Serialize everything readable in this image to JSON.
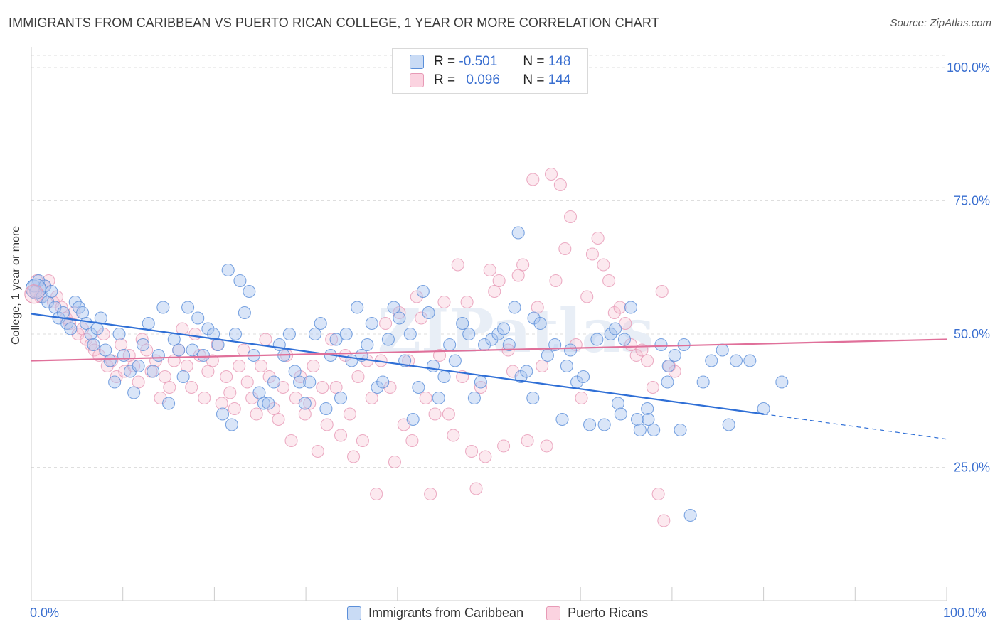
{
  "header": {
    "title": "IMMIGRANTS FROM CARIBBEAN VS PUERTO RICAN COLLEGE, 1 YEAR OR MORE CORRELATION CHART",
    "source": "Source: ZipAtlas.com"
  },
  "legend": {
    "rows": [
      {
        "r_label": "R =",
        "r_value": "-0.501",
        "n_label": "N =",
        "n_value": "148"
      },
      {
        "r_label": "R =",
        "r_value": "0.096",
        "n_label": "N =",
        "n_value": "144"
      }
    ]
  },
  "watermark": "ZIPatlas",
  "colors": {
    "blue_fill": "#aac6ef",
    "blue_stroke": "#5b8fd9",
    "blue_line": "#2f6fd6",
    "pink_fill": "#f7bfd2",
    "pink_stroke": "#e79ab6",
    "pink_line": "#e0709a",
    "tick_text": "#3a6fd0",
    "grid": "#dedede"
  },
  "chart_data": {
    "type": "scatter",
    "title": "IMMIGRANTS FROM CARIBBEAN VS PUERTO RICAN COLLEGE, 1 YEAR OR MORE CORRELATION CHART",
    "xlabel": "",
    "ylabel": "College, 1 year or more",
    "x_tick_labels": [
      "0.0%",
      "100.0%"
    ],
    "y_tick_labels": [
      "100.0%",
      "75.0%",
      "50.0%",
      "25.0%"
    ],
    "xlim": [
      0,
      100
    ],
    "ylim": [
      0,
      102
    ],
    "grid": true,
    "series": [
      {
        "name": "Immigrants from Caribbean",
        "color": "#5b8fd9",
        "trend": {
          "x0": 0,
          "y0": 53.8,
          "x1": 80,
          "y1": 35.0,
          "dash_to_x": 100,
          "dash_to_y": 30.3
        },
        "points": [
          [
            0.3,
            59
          ],
          [
            0.5,
            58
          ],
          [
            0.8,
            60
          ],
          [
            1.2,
            57
          ],
          [
            1.5,
            59
          ],
          [
            1.8,
            56
          ],
          [
            2.2,
            58
          ],
          [
            2.6,
            55
          ],
          [
            3.0,
            53
          ],
          [
            3.5,
            54
          ],
          [
            3.9,
            52
          ],
          [
            4.3,
            51
          ],
          [
            4.8,
            56
          ],
          [
            5.2,
            55
          ],
          [
            5.6,
            54
          ],
          [
            6.0,
            52
          ],
          [
            6.5,
            50
          ],
          [
            6.8,
            48
          ],
          [
            7.2,
            51
          ],
          [
            7.6,
            53
          ],
          [
            8.1,
            47
          ],
          [
            8.6,
            45
          ],
          [
            9.1,
            41
          ],
          [
            9.6,
            50
          ],
          [
            10.1,
            46
          ],
          [
            10.8,
            43
          ],
          [
            11.2,
            39
          ],
          [
            11.7,
            44
          ],
          [
            12.2,
            48
          ],
          [
            12.8,
            52
          ],
          [
            13.3,
            43
          ],
          [
            13.9,
            46
          ],
          [
            14.4,
            55
          ],
          [
            15.0,
            37
          ],
          [
            15.6,
            49
          ],
          [
            16.1,
            47
          ],
          [
            16.6,
            42
          ],
          [
            17.1,
            55
          ],
          [
            17.6,
            47
          ],
          [
            18.2,
            53
          ],
          [
            18.8,
            46
          ],
          [
            19.3,
            51
          ],
          [
            19.9,
            50
          ],
          [
            20.4,
            48
          ],
          [
            20.9,
            35
          ],
          [
            21.5,
            62
          ],
          [
            21.9,
            33
          ],
          [
            22.3,
            50
          ],
          [
            22.8,
            60
          ],
          [
            23.3,
            54
          ],
          [
            23.8,
            58
          ],
          [
            24.3,
            46
          ],
          [
            24.9,
            39
          ],
          [
            25.4,
            37
          ],
          [
            25.9,
            37
          ],
          [
            26.5,
            41
          ],
          [
            27.1,
            48
          ],
          [
            27.6,
            46
          ],
          [
            28.2,
            50
          ],
          [
            28.8,
            43
          ],
          [
            29.3,
            41
          ],
          [
            29.9,
            37
          ],
          [
            30.4,
            41
          ],
          [
            31.0,
            50
          ],
          [
            31.6,
            52
          ],
          [
            32.2,
            36
          ],
          [
            32.7,
            46
          ],
          [
            33.3,
            49
          ],
          [
            33.8,
            38
          ],
          [
            34.4,
            50
          ],
          [
            35.0,
            45
          ],
          [
            35.6,
            55
          ],
          [
            36.1,
            46
          ],
          [
            36.7,
            48
          ],
          [
            37.2,
            52
          ],
          [
            37.8,
            40
          ],
          [
            38.4,
            41
          ],
          [
            39.0,
            49
          ],
          [
            39.6,
            55
          ],
          [
            40.2,
            53
          ],
          [
            40.8,
            45
          ],
          [
            41.4,
            50
          ],
          [
            41.7,
            34
          ],
          [
            42.3,
            40
          ],
          [
            42.8,
            58
          ],
          [
            43.4,
            54
          ],
          [
            43.9,
            44
          ],
          [
            44.5,
            38
          ],
          [
            45.1,
            42
          ],
          [
            45.7,
            48
          ],
          [
            46.3,
            45
          ],
          [
            47.1,
            52
          ],
          [
            47.8,
            50
          ],
          [
            48.4,
            38
          ],
          [
            49.1,
            41
          ],
          [
            49.5,
            48
          ],
          [
            50.3,
            49
          ],
          [
            51.0,
            50
          ],
          [
            51.6,
            51
          ],
          [
            52.2,
            48
          ],
          [
            52.8,
            55
          ],
          [
            53.5,
            42
          ],
          [
            54.1,
            43
          ],
          [
            54.9,
            53
          ],
          [
            55.6,
            52
          ],
          [
            56.4,
            46
          ],
          [
            57.2,
            48
          ],
          [
            58.0,
            34
          ],
          [
            58.9,
            47
          ],
          [
            59.6,
            41
          ],
          [
            60.3,
            42
          ],
          [
            61.0,
            33
          ],
          [
            61.8,
            49
          ],
          [
            62.6,
            33
          ],
          [
            63.3,
            50
          ],
          [
            64.1,
            37
          ],
          [
            64.8,
            49
          ],
          [
            65.5,
            55
          ],
          [
            66.2,
            34
          ],
          [
            67.3,
            36
          ],
          [
            68.0,
            32
          ],
          [
            68.8,
            48
          ],
          [
            69.5,
            41
          ],
          [
            70.3,
            46
          ],
          [
            71.3,
            48
          ],
          [
            72.0,
            16
          ],
          [
            73.4,
            41
          ],
          [
            74.3,
            45
          ],
          [
            75.5,
            47
          ],
          [
            76.2,
            33
          ],
          [
            77.0,
            45
          ],
          [
            78.5,
            45
          ],
          [
            80.0,
            36
          ],
          [
            82.0,
            41
          ],
          [
            69.6,
            44
          ],
          [
            66.5,
            32
          ],
          [
            67.4,
            34
          ],
          [
            70.9,
            32
          ],
          [
            64.4,
            35
          ],
          [
            58.5,
            44
          ],
          [
            63.8,
            51
          ],
          [
            53.2,
            69
          ],
          [
            54.8,
            38
          ]
        ]
      },
      {
        "name": "Puerto Ricans",
        "color": "#e79ab6",
        "trend": {
          "x0": 0,
          "y0": 45.0,
          "x1": 100,
          "y1": 49.0
        },
        "points": [
          [
            0.2,
            58
          ],
          [
            0.6,
            60
          ],
          [
            1.0,
            57
          ],
          [
            1.4,
            59
          ],
          [
            1.9,
            60
          ],
          [
            2.4,
            56
          ],
          [
            2.8,
            57
          ],
          [
            3.3,
            55
          ],
          [
            3.8,
            53
          ],
          [
            4.2,
            52
          ],
          [
            4.7,
            54
          ],
          [
            5.1,
            50
          ],
          [
            5.6,
            51
          ],
          [
            6.0,
            49
          ],
          [
            6.5,
            48
          ],
          [
            6.9,
            47
          ],
          [
            7.4,
            46
          ],
          [
            7.9,
            50
          ],
          [
            8.3,
            44
          ],
          [
            8.8,
            45
          ],
          [
            9.3,
            42
          ],
          [
            9.8,
            48
          ],
          [
            10.2,
            43
          ],
          [
            10.7,
            46
          ],
          [
            11.2,
            44
          ],
          [
            11.7,
            41
          ],
          [
            12.1,
            49
          ],
          [
            12.6,
            47
          ],
          [
            13.1,
            43
          ],
          [
            13.6,
            45
          ],
          [
            14.1,
            38
          ],
          [
            14.6,
            42
          ],
          [
            15.1,
            40
          ],
          [
            15.6,
            45
          ],
          [
            16.1,
            47
          ],
          [
            16.5,
            51
          ],
          [
            17.0,
            44
          ],
          [
            17.5,
            40
          ],
          [
            17.9,
            50
          ],
          [
            18.4,
            46
          ],
          [
            18.9,
            38
          ],
          [
            19.3,
            43
          ],
          [
            19.8,
            45
          ],
          [
            20.3,
            48
          ],
          [
            20.8,
            37
          ],
          [
            21.3,
            42
          ],
          [
            21.7,
            39
          ],
          [
            22.2,
            36
          ],
          [
            22.7,
            44
          ],
          [
            23.2,
            47
          ],
          [
            23.6,
            41
          ],
          [
            24.1,
            38
          ],
          [
            24.6,
            35
          ],
          [
            25.1,
            44
          ],
          [
            25.6,
            49
          ],
          [
            26.0,
            42
          ],
          [
            26.5,
            36
          ],
          [
            27.0,
            34
          ],
          [
            27.5,
            40
          ],
          [
            27.9,
            46
          ],
          [
            28.4,
            30
          ],
          [
            28.9,
            38
          ],
          [
            29.4,
            42
          ],
          [
            29.9,
            35
          ],
          [
            30.4,
            37
          ],
          [
            30.8,
            44
          ],
          [
            31.3,
            28
          ],
          [
            31.8,
            40
          ],
          [
            32.3,
            33
          ],
          [
            32.8,
            49
          ],
          [
            33.3,
            40
          ],
          [
            33.8,
            31
          ],
          [
            34.3,
            46
          ],
          [
            34.8,
            35
          ],
          [
            35.2,
            27
          ],
          [
            35.7,
            42
          ],
          [
            36.2,
            30
          ],
          [
            36.7,
            45
          ],
          [
            37.2,
            38
          ],
          [
            37.7,
            20
          ],
          [
            38.2,
            45
          ],
          [
            38.7,
            52
          ],
          [
            39.2,
            40
          ],
          [
            39.7,
            26
          ],
          [
            40.2,
            54
          ],
          [
            40.7,
            33
          ],
          [
            41.2,
            45
          ],
          [
            41.6,
            30
          ],
          [
            42.1,
            57
          ],
          [
            42.6,
            53
          ],
          [
            43.1,
            38
          ],
          [
            43.6,
            20
          ],
          [
            44.1,
            35
          ],
          [
            44.6,
            46
          ],
          [
            45.1,
            56
          ],
          [
            45.6,
            35
          ],
          [
            46.1,
            31
          ],
          [
            46.6,
            63
          ],
          [
            47.1,
            42
          ],
          [
            47.6,
            56
          ],
          [
            48.1,
            28
          ],
          [
            48.6,
            21
          ],
          [
            49.1,
            40
          ],
          [
            49.6,
            27
          ],
          [
            50.1,
            62
          ],
          [
            50.6,
            58
          ],
          [
            51.1,
            60
          ],
          [
            51.6,
            29
          ],
          [
            52.1,
            47
          ],
          [
            52.6,
            43
          ],
          [
            53.2,
            61
          ],
          [
            53.7,
            63
          ],
          [
            54.2,
            30
          ],
          [
            54.8,
            79
          ],
          [
            55.3,
            55
          ],
          [
            55.8,
            44
          ],
          [
            56.3,
            29
          ],
          [
            56.8,
            80
          ],
          [
            57.3,
            60
          ],
          [
            57.8,
            78
          ],
          [
            58.3,
            66
          ],
          [
            58.9,
            72
          ],
          [
            59.5,
            48
          ],
          [
            60.1,
            38
          ],
          [
            60.7,
            57
          ],
          [
            61.3,
            65
          ],
          [
            61.9,
            68
          ],
          [
            62.5,
            63
          ],
          [
            63.1,
            60
          ],
          [
            63.7,
            54
          ],
          [
            64.3,
            55
          ],
          [
            64.9,
            52
          ],
          [
            65.5,
            48
          ],
          [
            66.1,
            46
          ],
          [
            66.7,
            47
          ],
          [
            67.3,
            45
          ],
          [
            67.9,
            40
          ],
          [
            68.5,
            20
          ],
          [
            69.1,
            15
          ],
          [
            68.9,
            58
          ],
          [
            69.7,
            44
          ],
          [
            70.3,
            43
          ]
        ]
      }
    ]
  },
  "bottom_legend": {
    "items": [
      "Immigrants from Caribbean",
      "Puerto Ricans"
    ]
  },
  "axes": {
    "x_left": "0.0%",
    "x_right": "100.0%"
  }
}
